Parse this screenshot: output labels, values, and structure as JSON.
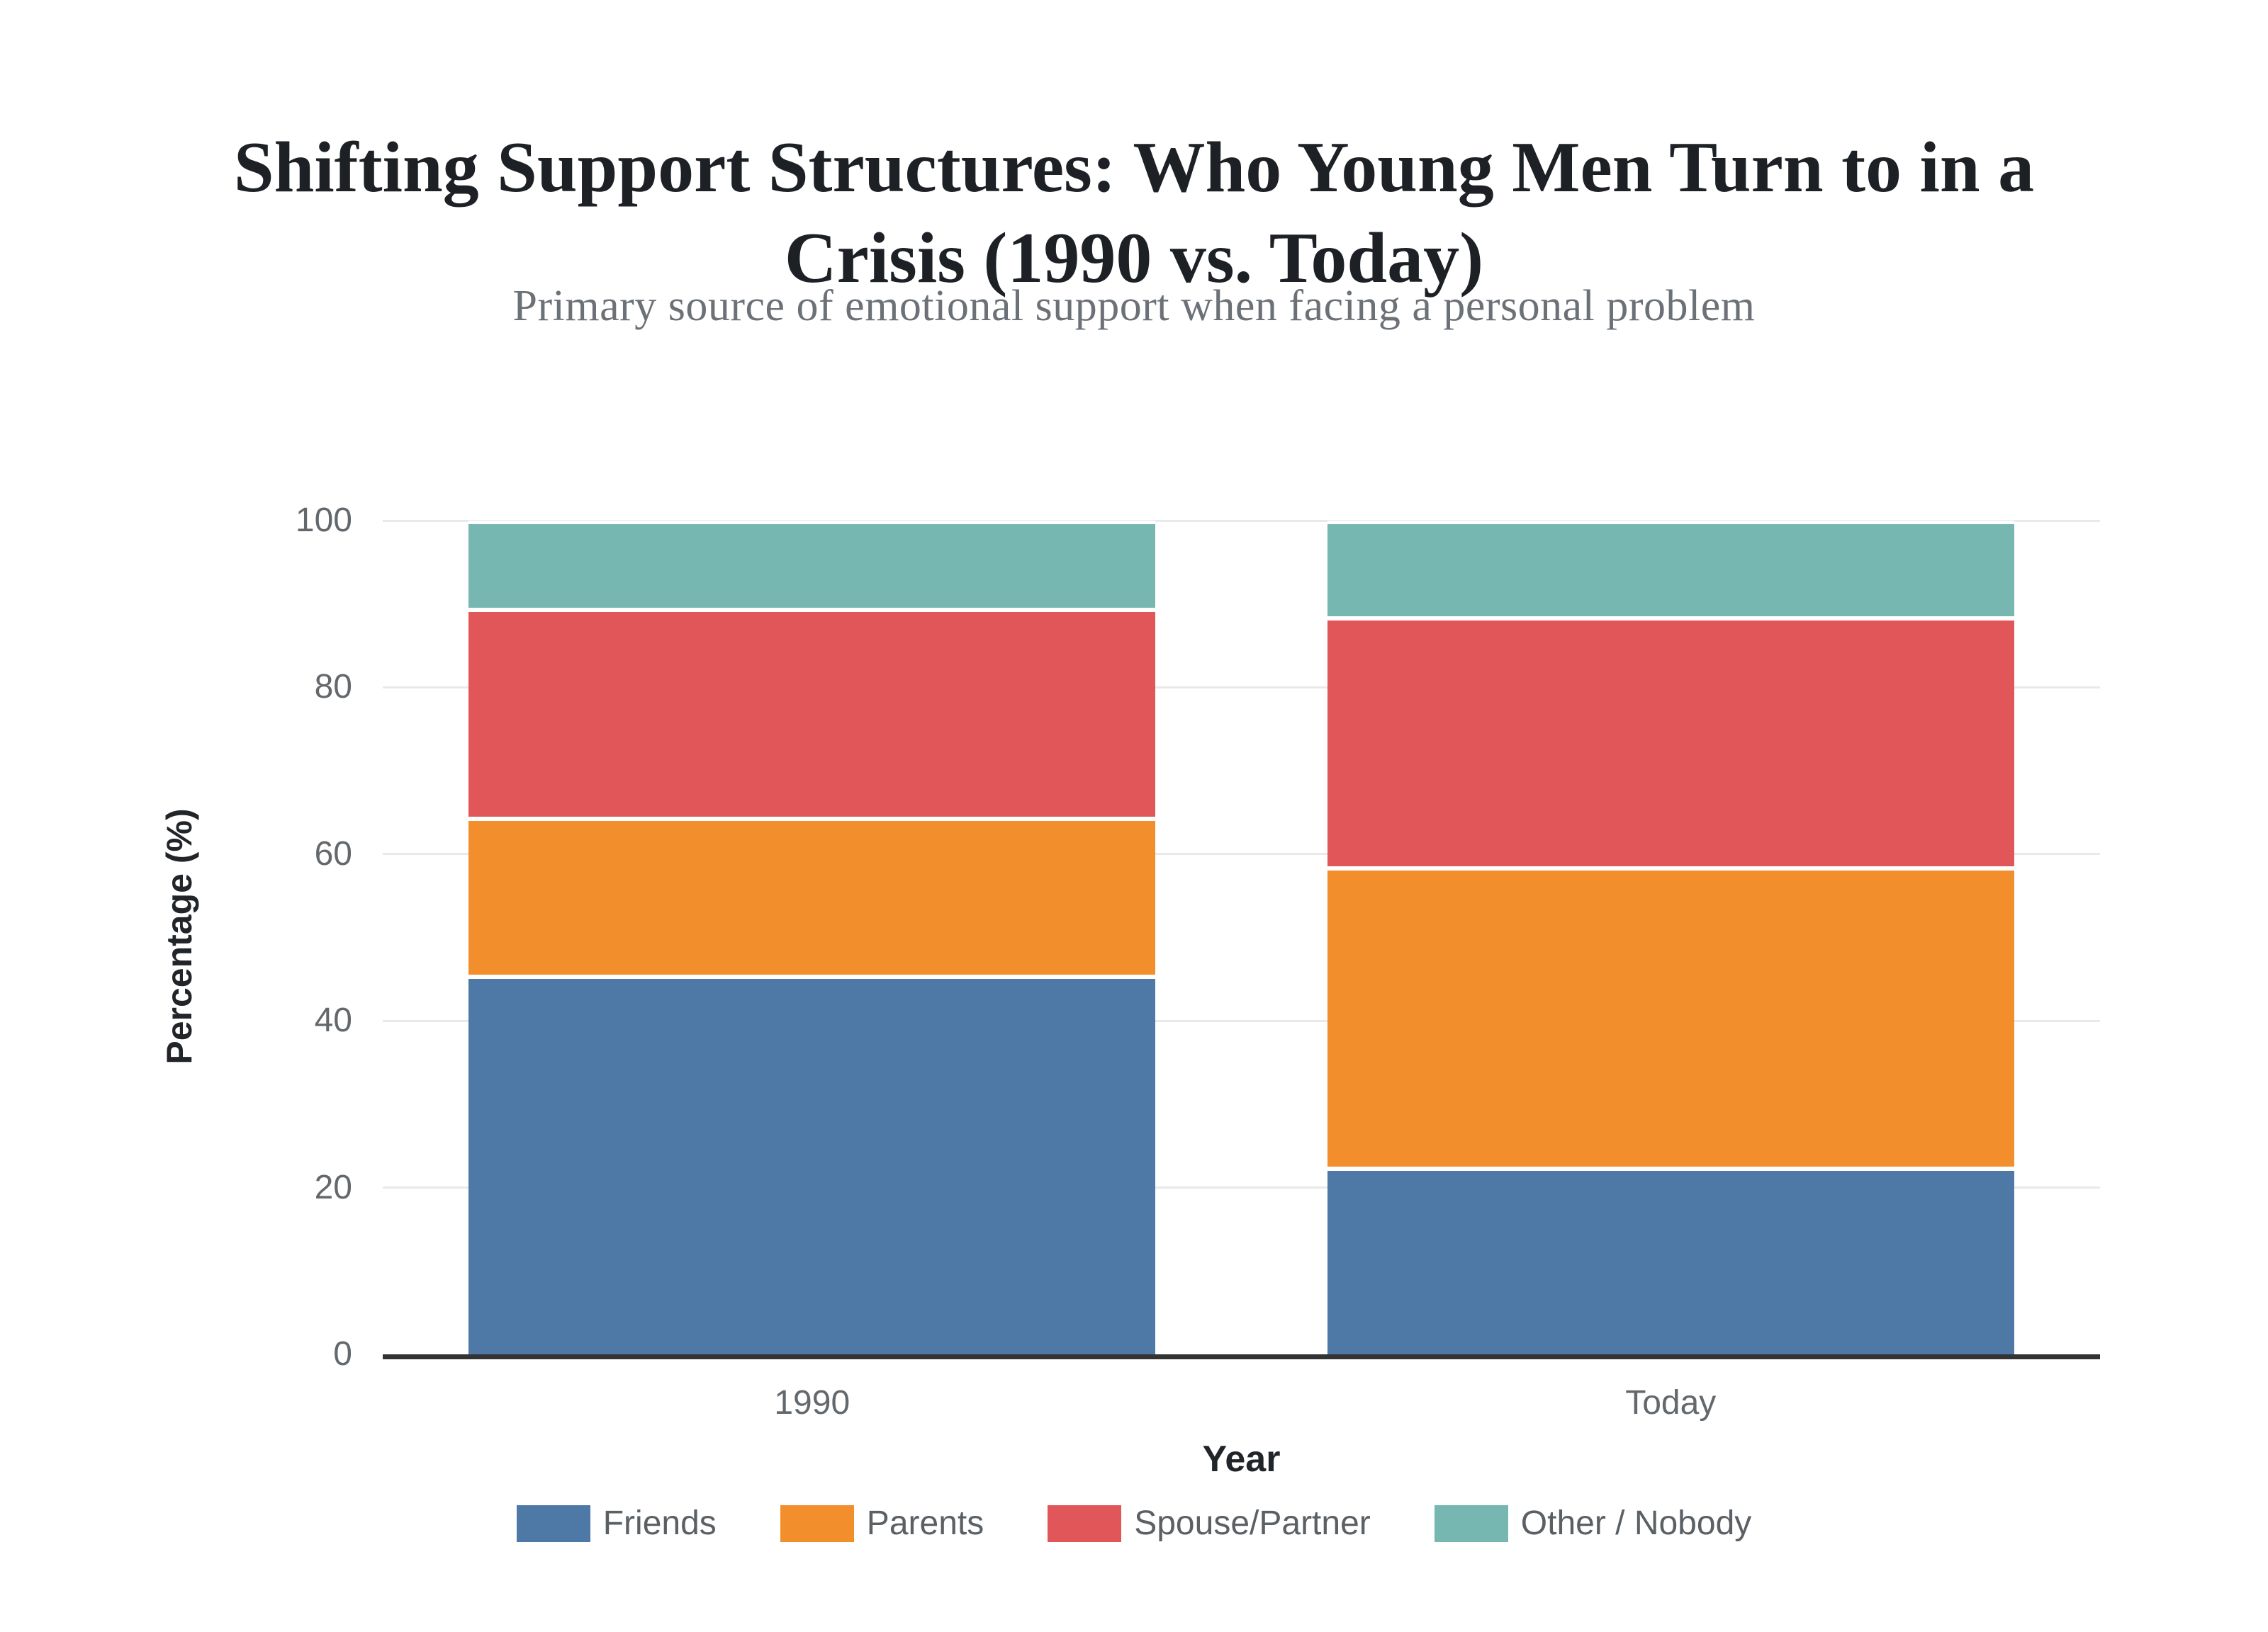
{
  "header": {
    "title_line1": "Shifting Support Structures: Who Young Men Turn to in a",
    "title_line2": "Crisis (1990 vs. Today)",
    "subtitle": "Primary source of emotional support when facing a personal problem"
  },
  "chart_data": {
    "type": "bar",
    "variant": "stacked-percentage",
    "title": "Shifting Support Structures: Who Young Men Turn to in a Crisis (1990 vs. Today)",
    "subtitle": "Primary source of emotional support when facing a personal problem",
    "categories": [
      "1990",
      "Today"
    ],
    "series": [
      {
        "name": "Friends",
        "color": "#4E79A7",
        "values": [
          45,
          22
        ]
      },
      {
        "name": "Parents",
        "color": "#F28E2B",
        "values": [
          19,
          36
        ]
      },
      {
        "name": "Spouse/Partner",
        "color": "#E15759",
        "values": [
          25,
          30
        ]
      },
      {
        "name": "Other / Nobody",
        "color": "#76B7B2",
        "values": [
          11,
          12
        ]
      }
    ],
    "xlabel": "Year",
    "ylabel": "Percentage (%)",
    "ylim": [
      0,
      100
    ],
    "yticks": [
      0,
      20,
      40,
      60,
      80,
      100
    ],
    "grid": true,
    "legend_position": "bottom",
    "separator_color": "#ffffff",
    "axis_color": "#333333",
    "gridline_color": "#e9e9ec"
  }
}
